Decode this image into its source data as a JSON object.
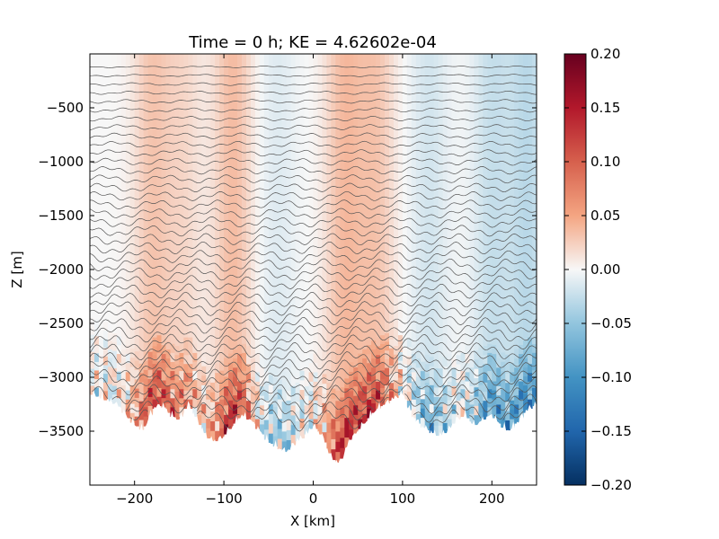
{
  "chart_data": {
    "type": "heatmap",
    "title": "Time = 0 h; KE = 4.62602e-04",
    "xlabel": "X [km]",
    "ylabel": "Z [m]",
    "xlim": [
      -250,
      250
    ],
    "ylim": [
      -4000,
      0
    ],
    "xticks": [
      -200,
      -100,
      0,
      100,
      200
    ],
    "xtick_labels": [
      "−200",
      "−100",
      "0",
      "100",
      "200"
    ],
    "yticks": [
      -500,
      -1000,
      -1500,
      -2000,
      -2500,
      -3000,
      -3500
    ],
    "ytick_labels": [
      "−500",
      "−1000",
      "−1500",
      "−2000",
      "−2500",
      "−3000",
      "−3500"
    ],
    "colorbar": {
      "colormap": "RdBu_r",
      "vmin": -0.2,
      "vmax": 0.2,
      "ticks": [
        0.2,
        0.15,
        0.1,
        0.05,
        0.0,
        -0.05,
        -0.1,
        -0.15,
        -0.2
      ],
      "tick_labels": [
        "0.20",
        "0.15",
        "0.10",
        "0.05",
        "0.00",
        "−0.05",
        "−0.10",
        "−0.15",
        "−0.20"
      ]
    },
    "contour_color": "#555555",
    "bathymetry": {
      "x": [
        -250,
        -235,
        -220,
        -205,
        -190,
        -180,
        -170,
        -160,
        -150,
        -140,
        -130,
        -120,
        -110,
        -100,
        -90,
        -80,
        -70,
        -60,
        -50,
        -40,
        -30,
        -20,
        -10,
        0,
        10,
        20,
        30,
        40,
        50,
        60,
        70,
        80,
        90,
        100,
        110,
        120,
        130,
        140,
        150,
        160,
        170,
        180,
        190,
        200,
        210,
        220,
        230,
        240,
        250
      ],
      "depth": [
        -3150,
        -3200,
        -3250,
        -3400,
        -3500,
        -3300,
        -3250,
        -3350,
        -3400,
        -3250,
        -3400,
        -3550,
        -3600,
        -3550,
        -3450,
        -3350,
        -3400,
        -3500,
        -3600,
        -3650,
        -3700,
        -3600,
        -3550,
        -3450,
        -3550,
        -3750,
        -3800,
        -3600,
        -3500,
        -3400,
        -3300,
        -3250,
        -3200,
        -3150,
        -3350,
        -3450,
        -3500,
        -3550,
        -3500,
        -3400,
        -3350,
        -3450,
        -3400,
        -3350,
        -3450,
        -3500,
        -3400,
        -3300,
        -3250
      ]
    },
    "velocity_bands": [
      {
        "x": -180,
        "value": 0.05
      },
      {
        "x": -145,
        "value": 0.03
      },
      {
        "x": -90,
        "value": 0.06
      },
      {
        "x": -40,
        "value": -0.02
      },
      {
        "x": 35,
        "value": 0.06
      },
      {
        "x": 70,
        "value": 0.05
      },
      {
        "x": 130,
        "value": -0.03
      },
      {
        "x": 200,
        "value": -0.04
      },
      {
        "x": 240,
        "value": -0.05
      }
    ]
  }
}
